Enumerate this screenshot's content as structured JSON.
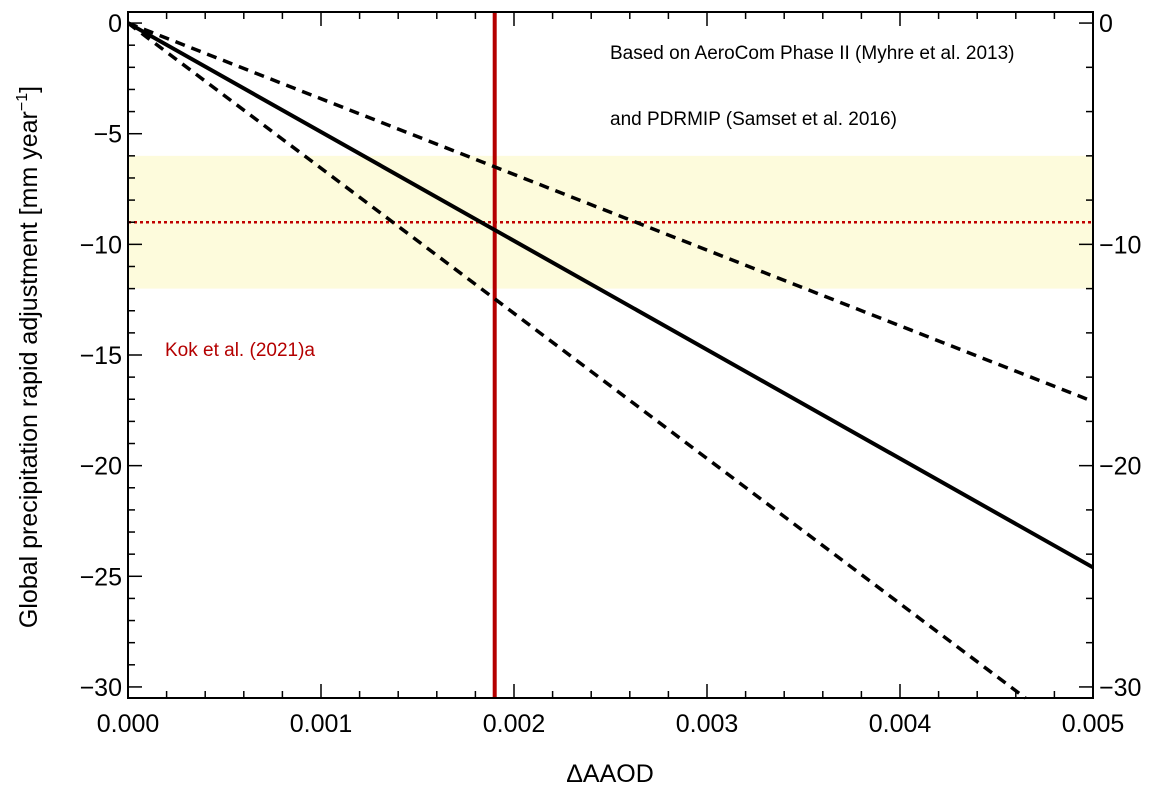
{
  "chart_data": {
    "type": "line",
    "xlabel": "ΔAAOD",
    "ylabel": "Global precipitation rapid adjustment [mm year",
    "ylabel_sup": "−1",
    "ylabel_close": "]",
    "xlim": [
      0,
      0.005
    ],
    "ylim": [
      -30.5,
      0.5
    ],
    "x_ticks": [
      0,
      0.001,
      0.002,
      0.003,
      0.004,
      0.005
    ],
    "x_tick_labels": [
      "0.000",
      "0.001",
      "0.002",
      "0.003",
      "0.004",
      "0.005"
    ],
    "y_ticks_left": [
      0,
      -5,
      -10,
      -15,
      -20,
      -25,
      -30
    ],
    "y_tick_labels_left": [
      "0",
      "−5",
      "−10",
      "−15",
      "−20",
      "−25",
      "−30"
    ],
    "y_ticks_right": [
      0,
      -10,
      -20,
      -30
    ],
    "y_tick_labels_right": [
      "0",
      "−10",
      "−20",
      "−30"
    ],
    "series": [
      {
        "style": "solid",
        "color": "#000000",
        "x": [
          0,
          0.005
        ],
        "y": [
          0,
          -24.6
        ]
      },
      {
        "style": "dashed",
        "color": "#000000",
        "x": [
          0,
          0.005
        ],
        "y": [
          0,
          -17.1
        ]
      },
      {
        "style": "dashed",
        "color": "#000000",
        "x": [
          0,
          0.00465
        ],
        "y": [
          0,
          -30.5
        ]
      }
    ],
    "shaded_band": {
      "y": [
        -12,
        -6
      ],
      "color": "#fdfbdc"
    },
    "hline": {
      "y": -9,
      "style": "dotted",
      "color": "#c00000"
    },
    "vline": {
      "x": 0.0019,
      "style": "solid",
      "color": "#b40000"
    },
    "annotations": [
      {
        "text": "Based on AeroCom Phase II (Myhre et al. 2013)",
        "color": "#000000"
      },
      {
        "text": "and PDRMIP (Samset et al. 2016)",
        "color": "#000000"
      },
      {
        "text": "Kok et al. (2021)a",
        "color": "#b40000"
      }
    ]
  }
}
